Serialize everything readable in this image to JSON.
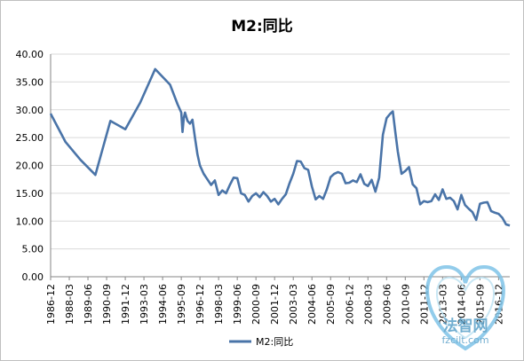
{
  "chart_data": {
    "type": "line",
    "title": "M2:同比",
    "xlabel": "",
    "ylabel": "",
    "ylim": [
      0,
      40
    ],
    "yticks": [
      "0.00",
      "5.00",
      "10.00",
      "15.00",
      "20.00",
      "25.00",
      "30.00",
      "35.00",
      "40.00"
    ],
    "xlim": [
      "1986-12",
      "2017-09"
    ],
    "xticks": [
      "1986-12",
      "1988-03",
      "1989-06",
      "1990-09",
      "1991-12",
      "1993-03",
      "1994-06",
      "1995-09",
      "1996-12",
      "1998-03",
      "1999-06",
      "2000-09",
      "2001-12",
      "2003-03",
      "2004-06",
      "2005-09",
      "2006-12",
      "2008-03",
      "2009-06",
      "2010-09",
      "2011-12",
      "2013-03",
      "2014-06",
      "2015-09",
      "2016-12"
    ],
    "grid": true,
    "legend": "bottom",
    "series": [
      {
        "name": "M2:同比",
        "color": "#4a74a8",
        "points": [
          [
            "1986-12",
            29.3
          ],
          [
            "1987-12",
            24.2
          ],
          [
            "1988-12",
            21.0
          ],
          [
            "1989-12",
            18.3
          ],
          [
            "1990-12",
            28.0
          ],
          [
            "1991-12",
            26.5
          ],
          [
            "1992-12",
            31.3
          ],
          [
            "1993-12",
            37.3
          ],
          [
            "1994-12",
            34.5
          ],
          [
            "1995-06",
            31.0
          ],
          [
            "1995-09",
            29.5
          ],
          [
            "1995-10",
            26.0
          ],
          [
            "1995-11",
            28.5
          ],
          [
            "1995-12",
            29.5
          ],
          [
            "1996-02",
            28.0
          ],
          [
            "1996-04",
            27.5
          ],
          [
            "1996-06",
            28.2
          ],
          [
            "1996-08",
            25.0
          ],
          [
            "1996-10",
            22.0
          ],
          [
            "1996-12",
            20.0
          ],
          [
            "1997-03",
            18.5
          ],
          [
            "1997-06",
            17.5
          ],
          [
            "1997-09",
            16.5
          ],
          [
            "1997-12",
            17.3
          ],
          [
            "1998-03",
            14.7
          ],
          [
            "1998-06",
            15.5
          ],
          [
            "1998-09",
            15.0
          ],
          [
            "1998-12",
            16.5
          ],
          [
            "1999-03",
            17.8
          ],
          [
            "1999-06",
            17.7
          ],
          [
            "1999-09",
            15.0
          ],
          [
            "1999-12",
            14.7
          ],
          [
            "2000-03",
            13.5
          ],
          [
            "2000-06",
            14.5
          ],
          [
            "2000-09",
            15.0
          ],
          [
            "2000-12",
            14.3
          ],
          [
            "2001-03",
            15.2
          ],
          [
            "2001-06",
            14.5
          ],
          [
            "2001-09",
            13.5
          ],
          [
            "2001-12",
            14.0
          ],
          [
            "2002-03",
            13.0
          ],
          [
            "2002-06",
            14.0
          ],
          [
            "2002-09",
            14.8
          ],
          [
            "2002-12",
            16.8
          ],
          [
            "2003-03",
            18.5
          ],
          [
            "2003-06",
            20.8
          ],
          [
            "2003-09",
            20.7
          ],
          [
            "2003-12",
            19.5
          ],
          [
            "2004-03",
            19.2
          ],
          [
            "2004-06",
            16.2
          ],
          [
            "2004-09",
            13.9
          ],
          [
            "2004-12",
            14.5
          ],
          [
            "2005-03",
            14.0
          ],
          [
            "2005-06",
            15.7
          ],
          [
            "2005-09",
            17.9
          ],
          [
            "2005-12",
            18.5
          ],
          [
            "2006-03",
            18.8
          ],
          [
            "2006-06",
            18.5
          ],
          [
            "2006-09",
            16.8
          ],
          [
            "2006-12",
            16.9
          ],
          [
            "2007-03",
            17.3
          ],
          [
            "2007-06",
            17.0
          ],
          [
            "2007-09",
            18.4
          ],
          [
            "2007-12",
            16.7
          ],
          [
            "2008-03",
            16.3
          ],
          [
            "2008-06",
            17.4
          ],
          [
            "2008-09",
            15.3
          ],
          [
            "2008-12",
            17.8
          ],
          [
            "2009-03",
            25.5
          ],
          [
            "2009-06",
            28.5
          ],
          [
            "2009-09",
            29.3
          ],
          [
            "2009-11",
            29.7
          ],
          [
            "2010-01",
            26.0
          ],
          [
            "2010-03",
            22.5
          ],
          [
            "2010-06",
            18.5
          ],
          [
            "2010-09",
            19.0
          ],
          [
            "2010-12",
            19.7
          ],
          [
            "2011-03",
            16.6
          ],
          [
            "2011-06",
            15.9
          ],
          [
            "2011-09",
            13.0
          ],
          [
            "2011-12",
            13.6
          ],
          [
            "2012-03",
            13.4
          ],
          [
            "2012-06",
            13.6
          ],
          [
            "2012-09",
            14.8
          ],
          [
            "2012-12",
            13.8
          ],
          [
            "2013-03",
            15.7
          ],
          [
            "2013-06",
            14.0
          ],
          [
            "2013-09",
            14.2
          ],
          [
            "2013-12",
            13.6
          ],
          [
            "2014-03",
            12.1
          ],
          [
            "2014-06",
            14.7
          ],
          [
            "2014-09",
            12.9
          ],
          [
            "2014-12",
            12.2
          ],
          [
            "2015-03",
            11.6
          ],
          [
            "2015-06",
            10.2
          ],
          [
            "2015-09",
            13.1
          ],
          [
            "2015-12",
            13.3
          ],
          [
            "2016-03",
            13.4
          ],
          [
            "2016-06",
            11.8
          ],
          [
            "2016-09",
            11.5
          ],
          [
            "2016-12",
            11.3
          ],
          [
            "2017-03",
            10.6
          ],
          [
            "2017-06",
            9.4
          ],
          [
            "2017-09",
            9.2
          ]
        ]
      }
    ]
  },
  "watermark": {
    "brand": "法智网",
    "domain": "fzcilt.com",
    "colors": {
      "heart_outer": "#7fc4e8",
      "heart_inner": "#bfe3f3",
      "text": "#5aa0c8"
    }
  }
}
